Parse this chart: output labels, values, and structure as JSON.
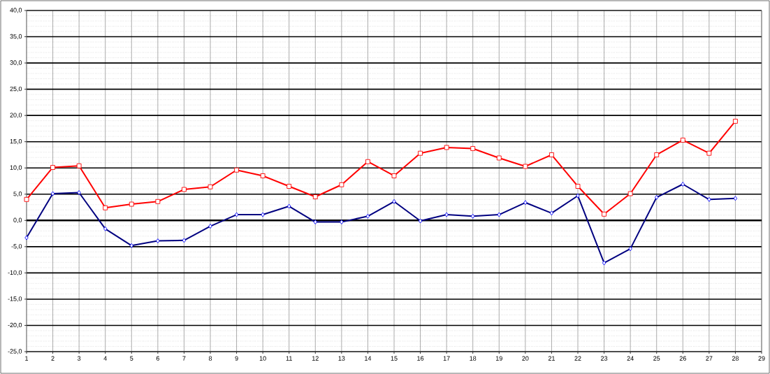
{
  "chart_data": {
    "type": "line",
    "x": [
      1,
      2,
      3,
      4,
      5,
      6,
      7,
      8,
      9,
      10,
      11,
      12,
      13,
      14,
      15,
      16,
      17,
      18,
      19,
      20,
      21,
      22,
      23,
      24,
      25,
      26,
      27,
      28
    ],
    "series": [
      {
        "color": "#ff0000",
        "marker": "square",
        "values": [
          4.0,
          10.1,
          10.4,
          2.4,
          3.1,
          3.6,
          5.9,
          6.4,
          9.6,
          8.5,
          6.5,
          4.5,
          6.8,
          11.2,
          8.5,
          12.8,
          13.9,
          13.7,
          11.9,
          10.3,
          12.5,
          6.5,
          1.2,
          5.1,
          12.5,
          15.3,
          12.8,
          18.9
        ]
      },
      {
        "color": "#000080",
        "marker": "diamond",
        "values": [
          -3.3,
          5.1,
          5.3,
          -1.6,
          -4.8,
          -3.9,
          -3.8,
          -1.1,
          1.1,
          1.1,
          2.7,
          -0.3,
          -0.3,
          0.8,
          3.6,
          -0.1,
          1.1,
          0.8,
          1.1,
          3.4,
          1.4,
          4.7,
          -8.1,
          -5.4,
          4.4,
          6.9,
          4.0,
          4.2
        ]
      }
    ],
    "xlim": [
      1,
      29
    ],
    "xticks": [
      1,
      2,
      3,
      4,
      5,
      6,
      7,
      8,
      9,
      10,
      11,
      12,
      13,
      14,
      15,
      16,
      17,
      18,
      19,
      20,
      21,
      22,
      23,
      24,
      25,
      26,
      27,
      28,
      29
    ],
    "ylim": [
      -25,
      40
    ],
    "yticks": [
      {
        "value": -25,
        "label": "-25,0"
      },
      {
        "value": -20,
        "label": "-20,0"
      },
      {
        "value": -15,
        "label": "-15,0"
      },
      {
        "value": -10,
        "label": "-10,0"
      },
      {
        "value": -5,
        "label": "-5,0"
      },
      {
        "value": 0,
        "label": "0,0"
      },
      {
        "value": 5,
        "label": "5,0"
      },
      {
        "value": 10,
        "label": "10,0"
      },
      {
        "value": 15,
        "label": "15,0"
      },
      {
        "value": 20,
        "label": "20,0"
      },
      {
        "value": 25,
        "label": "25,0"
      },
      {
        "value": 30,
        "label": "30,0"
      },
      {
        "value": 35,
        "label": "35,0"
      },
      {
        "value": 40,
        "label": "40,0"
      }
    ],
    "grid": true,
    "ref_lines": [
      {
        "axis": "y",
        "value": 0,
        "color": "#000000"
      }
    ],
    "line_style": "solid"
  }
}
